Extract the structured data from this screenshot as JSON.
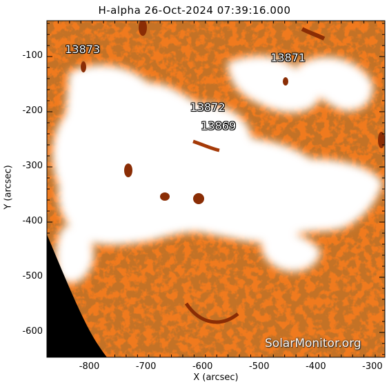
{
  "title": "H-alpha 26-Oct-2024 07:39:16.000",
  "xlabel": "X (arcsec)",
  "ylabel": "Y (arcsec)",
  "x_ticks": [
    -800,
    -700,
    -600,
    -500,
    -400,
    -300
  ],
  "y_ticks": [
    -100,
    -200,
    -300,
    -400,
    -500,
    -600
  ],
  "xlim": [
    -875,
    -278
  ],
  "ylim": [
    -645,
    -35
  ],
  "active_regions": [
    {
      "label": "13873",
      "x": -843,
      "y": -88
    },
    {
      "label": "13871",
      "x": -480,
      "y": -102
    },
    {
      "label": "13872",
      "x": -622,
      "y": -192
    },
    {
      "label": "13869",
      "x": -603,
      "y": -226
    }
  ],
  "watermark": "SolarMonitor.org",
  "colors": {
    "plage": "#ffffff",
    "chromosphere": "#f07a1e",
    "dark": "#8a2d05",
    "space": "#000000"
  }
}
